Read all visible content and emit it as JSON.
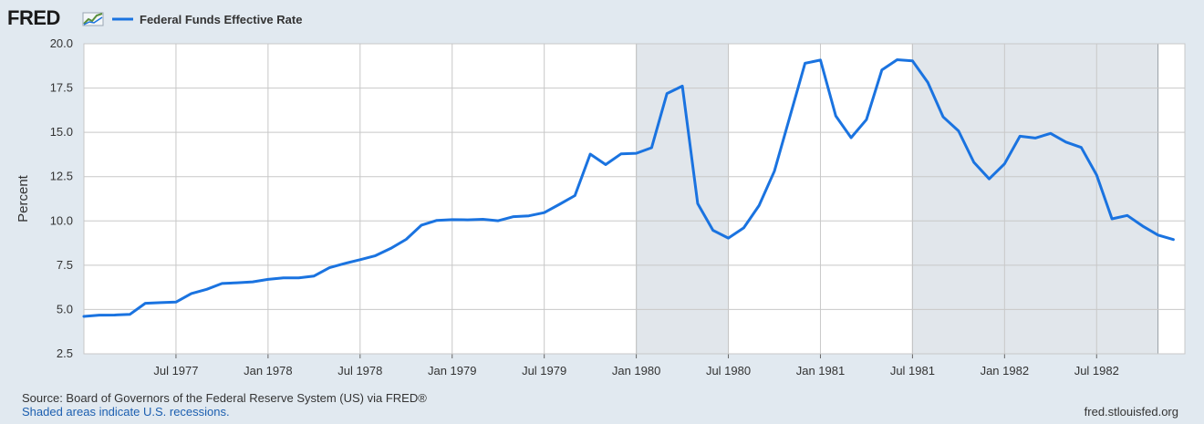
{
  "logo": {
    "text": "FRED",
    "icon": "fred-chart-icon"
  },
  "legend": {
    "label": "Federal Funds Effective Rate"
  },
  "footer": {
    "source": "Source: Board of Governors of the Federal Reserve System (US) via FRED®",
    "recession_note": "Shaded areas indicate U.S. recessions.",
    "site": "fred.stlouisfed.org"
  },
  "colors": {
    "line": "#1a73e0",
    "recession": "#e1e6eb",
    "plot_bg": "#ffffff",
    "page_bg": "#e1e9f0",
    "grid": "#c8c8c8"
  },
  "chart_data": {
    "type": "line",
    "title": "",
    "xlabel": "",
    "ylabel": "Percent",
    "ylim": [
      2.5,
      20.0
    ],
    "yticks": [
      "2.5",
      "5.0",
      "7.5",
      "10.0",
      "12.5",
      "15.0",
      "17.5",
      "20.0"
    ],
    "xticks": [
      "Jul 1977",
      "Jan 1978",
      "Jul 1978",
      "Jan 1979",
      "Jul 1979",
      "Jan 1980",
      "Jul 1980",
      "Jan 1981",
      "Jul 1981",
      "Jan 1982",
      "Jul 1982"
    ],
    "grid": true,
    "legend_position": "top-left",
    "recessions": [
      {
        "start": "1980-01",
        "end": "1980-07"
      },
      {
        "start": "1981-07",
        "end": "1982-11"
      }
    ],
    "series": [
      {
        "name": "Federal Funds Effective Rate",
        "x": [
          "1977-01",
          "1977-02",
          "1977-03",
          "1977-04",
          "1977-05",
          "1977-06",
          "1977-07",
          "1977-08",
          "1977-09",
          "1977-10",
          "1977-11",
          "1977-12",
          "1978-01",
          "1978-02",
          "1978-03",
          "1978-04",
          "1978-05",
          "1978-06",
          "1978-07",
          "1978-08",
          "1978-09",
          "1978-10",
          "1978-11",
          "1978-12",
          "1979-01",
          "1979-02",
          "1979-03",
          "1979-04",
          "1979-05",
          "1979-06",
          "1979-07",
          "1979-08",
          "1979-09",
          "1979-10",
          "1979-11",
          "1979-12",
          "1980-01",
          "1980-02",
          "1980-03",
          "1980-04",
          "1980-05",
          "1980-06",
          "1980-07",
          "1980-08",
          "1980-09",
          "1980-10",
          "1980-11",
          "1980-12",
          "1981-01",
          "1981-02",
          "1981-03",
          "1981-04",
          "1981-05",
          "1981-06",
          "1981-07",
          "1981-08",
          "1981-09",
          "1981-10",
          "1981-11",
          "1981-12",
          "1982-01",
          "1982-02",
          "1982-03",
          "1982-04",
          "1982-05",
          "1982-06",
          "1982-07",
          "1982-08",
          "1982-09",
          "1982-10",
          "1982-11",
          "1982-12"
        ],
        "values": [
          4.61,
          4.68,
          4.69,
          4.73,
          5.35,
          5.39,
          5.42,
          5.9,
          6.14,
          6.47,
          6.51,
          6.56,
          6.7,
          6.78,
          6.79,
          6.89,
          7.36,
          7.6,
          7.81,
          8.04,
          8.45,
          8.96,
          9.76,
          10.03,
          10.07,
          10.06,
          10.09,
          10.01,
          10.24,
          10.29,
          10.47,
          10.94,
          11.43,
          13.77,
          13.18,
          13.78,
          13.82,
          14.13,
          17.19,
          17.61,
          10.98,
          9.47,
          9.03,
          9.61,
          10.87,
          12.81,
          15.85,
          18.9,
          19.08,
          15.93,
          14.7,
          15.72,
          18.52,
          19.1,
          19.04,
          17.82,
          15.87,
          15.08,
          13.31,
          12.37,
          13.22,
          14.78,
          14.68,
          14.94,
          14.45,
          14.15,
          12.59,
          10.12,
          10.31,
          9.71,
          9.2,
          8.95
        ]
      }
    ]
  }
}
